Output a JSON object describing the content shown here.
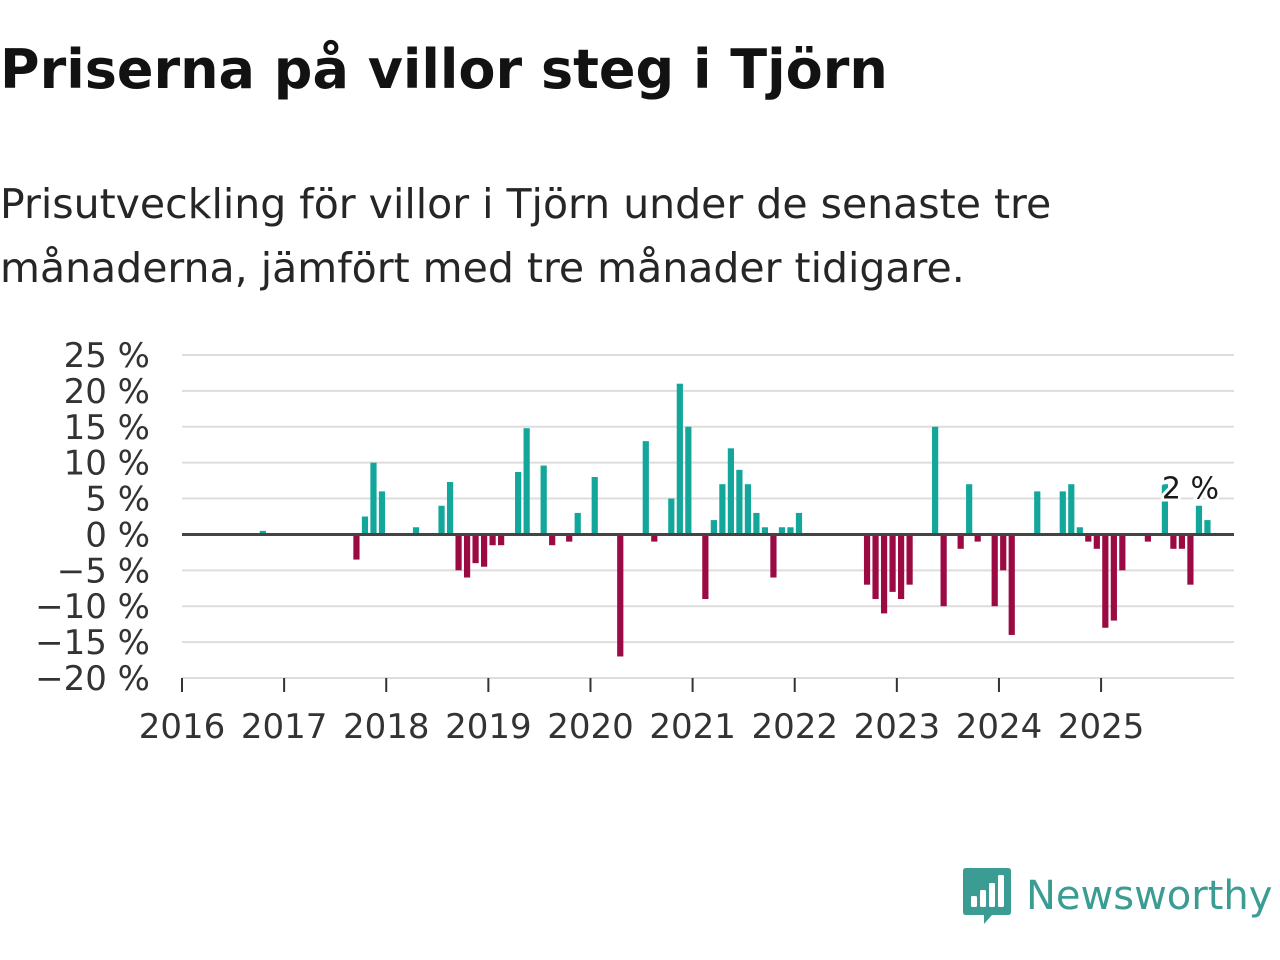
{
  "title": "Priserna på villor steg i Tjörn",
  "subtitle": "Prisutveckling för villor i Tjörn under de senaste tre månaderna, jämfört med tre månader tidigare.",
  "brand": {
    "name": "Newsworthy",
    "color": "#3a9c93",
    "icon": "newsworthy-logo-icon"
  },
  "colors": {
    "positive": "#13a69b",
    "negative": "#9b0a43",
    "grid": "#dddddd",
    "zero": "#444444"
  },
  "chart_data": {
    "type": "bar",
    "title": "",
    "xlabel": "",
    "ylabel": "",
    "ylim": [
      -20,
      25
    ],
    "yticks": [
      25,
      20,
      15,
      10,
      5,
      0,
      -5,
      -10,
      -15,
      -20
    ],
    "ytick_labels": [
      "25 %",
      "20 %",
      "15 %",
      "10 %",
      "5 %",
      "0 %",
      "−5 %",
      "−10 %",
      "−15 %",
      "−20 %"
    ],
    "xtick_labels": [
      "2016",
      "2017",
      "2018",
      "2019",
      "2020",
      "2021",
      "2022",
      "2023",
      "2024",
      "2025"
    ],
    "x_start_year": 2016,
    "months": 120,
    "annotation": {
      "text": "2 %",
      "month_index": 118
    },
    "values": [
      0,
      0,
      0,
      0,
      0,
      0,
      0,
      0,
      0,
      0.5,
      0,
      0,
      0,
      0,
      0,
      0,
      0,
      0,
      0,
      0,
      -3.5,
      2.5,
      10,
      6,
      0,
      0,
      0,
      1,
      0,
      0,
      4,
      7.3,
      -5,
      -6,
      -4,
      -4.5,
      -1.5,
      -1.5,
      0,
      8.7,
      14.8,
      0,
      9.6,
      -1.5,
      0,
      -1,
      3,
      0,
      8,
      0,
      0,
      -17,
      0,
      0,
      13,
      -1,
      0,
      5,
      21,
      15,
      0,
      -9,
      2,
      7,
      12,
      9,
      7,
      3,
      1,
      -6,
      1,
      1,
      3,
      0,
      0,
      0,
      0,
      0,
      0,
      0,
      -7,
      -9,
      -11,
      -8,
      -9,
      -7,
      0,
      0,
      15,
      -10,
      0,
      -2,
      7,
      -1,
      0,
      -10,
      -5,
      -14,
      0,
      0,
      6,
      0,
      0,
      6,
      7,
      1,
      -1,
      -2,
      -13,
      -12,
      -5,
      0,
      0,
      -1,
      0,
      7,
      -2,
      -2,
      -7,
      4,
      2
    ]
  }
}
